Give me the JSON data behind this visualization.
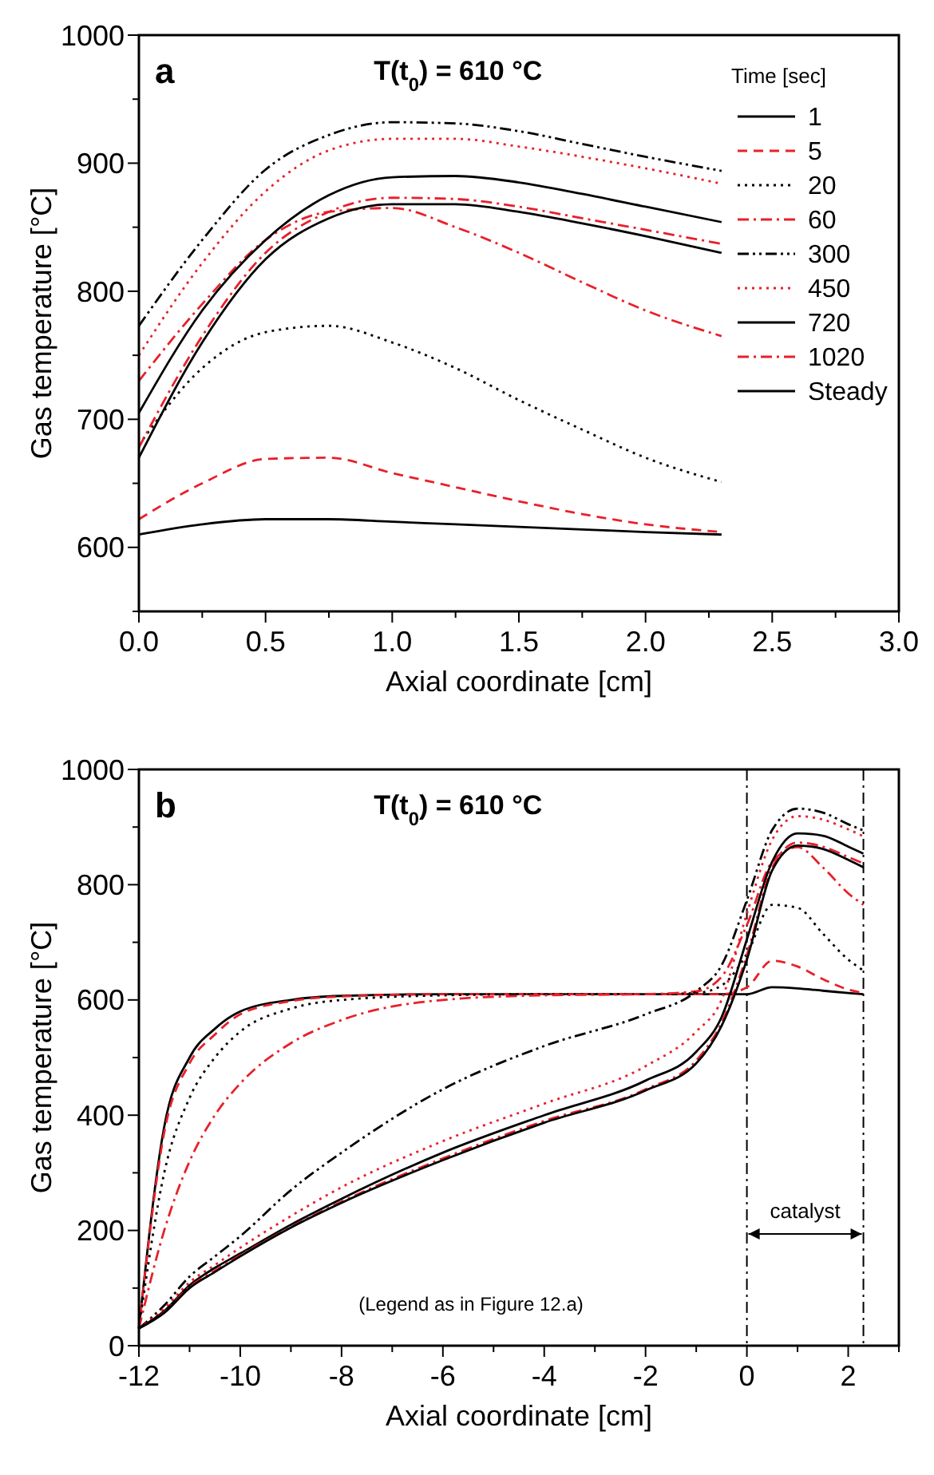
{
  "chart_data": [
    {
      "type": "line",
      "title": "T(t$_{0}$) = 610 °C",
      "xlabel": "Axial coordinate [cm]",
      "ylabel": "Gas temperature [°C]",
      "legend_title": "Time [sec]",
      "legend": "top right",
      "annotations": [
        "a"
      ],
      "xlim": [
        0,
        3
      ],
      "xticks": [
        {
          "value": 0,
          "label": "0.0"
        },
        {
          "value": 0.25,
          "label": null
        },
        {
          "value": 0.5,
          "label": "0.5"
        },
        {
          "value": 0.75,
          "label": null
        },
        {
          "value": 1,
          "label": "1.0"
        },
        {
          "value": 1.25,
          "label": null
        },
        {
          "value": 1.5,
          "label": "1.5"
        },
        {
          "value": 1.75,
          "label": null
        },
        {
          "value": 2,
          "label": "2.0"
        },
        {
          "value": 2.25,
          "label": null
        },
        {
          "value": 2.5,
          "label": "2.5"
        },
        {
          "value": 2.75,
          "label": null
        },
        {
          "value": 3,
          "label": "3.0"
        }
      ],
      "ylim": [
        550,
        1000
      ],
      "yticks": [
        {
          "value": 550,
          "label": null
        },
        600,
        {
          "value": 650,
          "label": null
        },
        700,
        {
          "value": 750,
          "label": null
        },
        800,
        {
          "value": 850,
          "label": null
        },
        900,
        {
          "value": 950,
          "label": null
        },
        1000
      ],
      "x": [
        0,
        0.25,
        0.5,
        0.75,
        1,
        1.25,
        1.5,
        1.75,
        2,
        2.3
      ],
      "series": [
        {
          "name": "1",
          "color": "#000000",
          "line_style": "solid",
          "values": [
            610,
            618,
            622,
            622,
            620,
            618,
            616,
            614,
            612,
            610
          ]
        },
        {
          "name": "5",
          "color": "#e8202a",
          "line_style": "dashed",
          "values": [
            622,
            650,
            669,
            670,
            658,
            647,
            636,
            626,
            618,
            612
          ]
        },
        {
          "name": "20",
          "color": "#000000",
          "line_style": "dotted",
          "values": [
            680,
            740,
            768,
            773,
            760,
            740,
            715,
            692,
            670,
            651
          ]
        },
        {
          "name": "60",
          "color": "#e8202a",
          "line_style": "dashdot",
          "values": [
            730,
            790,
            840,
            862,
            865,
            850,
            830,
            807,
            785,
            765
          ]
        },
        {
          "name": "300",
          "color": "#000000",
          "line_style": "dashdotdot",
          "values": [
            773,
            840,
            895,
            922,
            932,
            931,
            925,
            915,
            905,
            894
          ]
        },
        {
          "name": "450",
          "color": "#e8202a",
          "line_style": "dotted",
          "values": [
            750,
            822,
            878,
            910,
            919,
            919,
            913,
            905,
            896,
            884
          ]
        },
        {
          "name": "720",
          "color": "#000000",
          "line_style": "solid",
          "values": [
            705,
            785,
            840,
            875,
            889,
            890,
            885,
            876,
            866,
            854
          ]
        },
        {
          "name": "1020",
          "color": "#e8202a",
          "line_style": "dashdot",
          "values": [
            678,
            765,
            830,
            862,
            873,
            872,
            866,
            857,
            848,
            837
          ]
        },
        {
          "name": "Steady",
          "color": "#000000",
          "line_style": "solid",
          "values": [
            670,
            760,
            825,
            857,
            868,
            868,
            862,
            853,
            843,
            830
          ]
        }
      ]
    },
    {
      "type": "line",
      "title": "T(t$_{0}$) = 610 °C",
      "xlabel": "Axial coordinate [cm]",
      "ylabel": "Gas temperature [°C]",
      "legend": false,
      "annotations": [
        "b",
        "(Legend as in Figure 12.a)",
        "catalyst"
      ],
      "ref_lines": [
        {
          "axis": "x",
          "value": 0,
          "color": "#000000",
          "line_style": "dashdot"
        },
        {
          "axis": "x",
          "value": 2.3,
          "color": "#000000",
          "line_style": "dashdot"
        }
      ],
      "xlim": [
        -12,
        3
      ],
      "xticks": [
        -12,
        {
          "value": -11,
          "label": null
        },
        -10,
        {
          "value": -9,
          "label": null
        },
        -8,
        {
          "value": -7,
          "label": null
        },
        -6,
        {
          "value": -5,
          "label": null
        },
        -4,
        {
          "value": -3,
          "label": null
        },
        -2,
        {
          "value": -1,
          "label": null
        },
        0,
        {
          "value": 1,
          "label": null
        },
        2,
        {
          "value": 3,
          "label": null
        }
      ],
      "ylim": [
        0,
        1000
      ],
      "yticks": [
        0,
        {
          "value": 100,
          "label": null
        },
        200,
        {
          "value": 300,
          "label": null
        },
        400,
        {
          "value": 500,
          "label": null
        },
        600,
        {
          "value": 700,
          "label": null
        },
        800,
        {
          "value": 900,
          "label": null
        },
        1000
      ],
      "x": [
        -12,
        -11.5,
        -11,
        -10.5,
        -10,
        -9,
        -8,
        -6,
        -4,
        -2,
        -1,
        -0.5,
        0,
        0.5,
        1,
        1.5,
        2,
        2.3
      ],
      "series": [
        {
          "color": "#000000",
          "line_style": "solid",
          "values": [
            30,
            380,
            500,
            550,
            580,
            600,
            607,
            610,
            610,
            610,
            610,
            610,
            610,
            622,
            620,
            616,
            612,
            610
          ]
        },
        {
          "color": "#e8202a",
          "line_style": "dashed",
          "values": [
            30,
            370,
            490,
            540,
            575,
            598,
            606,
            610,
            610,
            610,
            610,
            610,
            622,
            668,
            658,
            636,
            618,
            612
          ]
        },
        {
          "color": "#000000",
          "line_style": "dotted",
          "values": [
            30,
            300,
            430,
            500,
            545,
            585,
            600,
            608,
            610,
            610,
            612,
            625,
            680,
            765,
            760,
            715,
            670,
            651
          ]
        },
        {
          "color": "#e8202a",
          "line_style": "dashdot",
          "values": [
            30,
            200,
            320,
            400,
            455,
            525,
            565,
            600,
            608,
            610,
            615,
            640,
            730,
            840,
            865,
            830,
            785,
            765
          ]
        },
        {
          "color": "#000000",
          "line_style": "dashdotdot",
          "values": [
            30,
            70,
            120,
            155,
            190,
            270,
            335,
            445,
            520,
            575,
            615,
            660,
            773,
            895,
            932,
            925,
            905,
            894
          ]
        },
        {
          "color": "#e8202a",
          "line_style": "dotted",
          "values": [
            30,
            65,
            110,
            140,
            170,
            225,
            275,
            355,
            420,
            485,
            545,
            600,
            750,
            878,
            919,
            913,
            896,
            884
          ]
        },
        {
          "color": "#000000",
          "line_style": "solid",
          "values": [
            30,
            60,
            105,
            135,
            160,
            210,
            255,
            335,
            400,
            460,
            510,
            570,
            705,
            840,
            889,
            885,
            866,
            854
          ]
        },
        {
          "color": "#e8202a",
          "line_style": "dashdot",
          "values": [
            30,
            58,
            102,
            130,
            157,
            206,
            250,
            325,
            390,
            445,
            495,
            560,
            678,
            830,
            873,
            866,
            848,
            837
          ]
        },
        {
          "color": "#000000",
          "line_style": "solid",
          "values": [
            30,
            57,
            100,
            128,
            155,
            205,
            248,
            322,
            387,
            443,
            490,
            555,
            670,
            825,
            868,
            862,
            843,
            830
          ]
        }
      ]
    }
  ]
}
